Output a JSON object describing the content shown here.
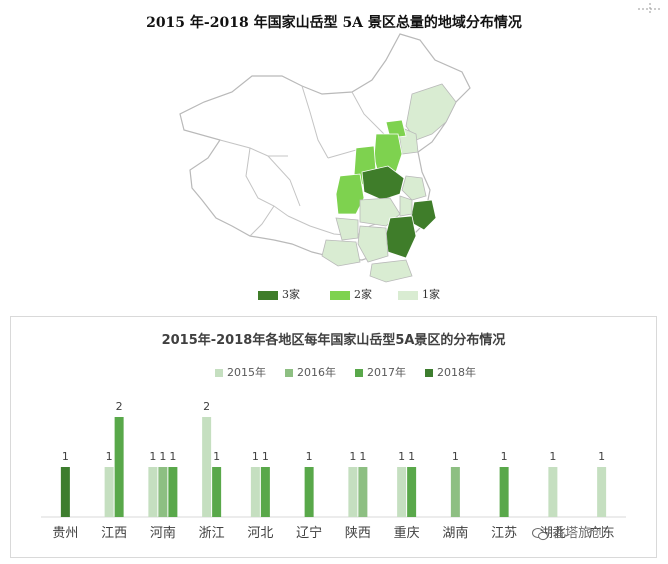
{
  "map_title": "2015 年-2018 年国家山岳型 5A 景区总量的地域分布情况",
  "map_legend": [
    {
      "label": "3家",
      "color": "#3f7d2a"
    },
    {
      "label": "2家",
      "color": "#7ed24f"
    },
    {
      "label": "1家",
      "color": "#d9ecd2"
    }
  ],
  "watermark": "香塔旅创",
  "chart_data": {
    "type": "bar",
    "title": "2015年-2018年各地区每年国家山岳型5A景区的分布情况",
    "categories": [
      "贵州",
      "江西",
      "河南",
      "浙江",
      "河北",
      "辽宁",
      "陕西",
      "重庆",
      "湖南",
      "江苏",
      "湖北",
      "广东"
    ],
    "series": [
      {
        "name": "2015年",
        "color": "#c5dfc0",
        "values": [
          0,
          1,
          1,
          2,
          1,
          0,
          1,
          1,
          0,
          0,
          1,
          1
        ]
      },
      {
        "name": "2016年",
        "color": "#8dbf82",
        "values": [
          0,
          0,
          1,
          0,
          0,
          0,
          1,
          0,
          1,
          0,
          0,
          0
        ]
      },
      {
        "name": "2017年",
        "color": "#59a84a",
        "values": [
          0,
          2,
          1,
          1,
          1,
          1,
          0,
          1,
          0,
          1,
          0,
          0
        ]
      },
      {
        "name": "2018年",
        "color": "#3d7d2e",
        "values": [
          1,
          0,
          0,
          0,
          0,
          0,
          0,
          0,
          0,
          0,
          0,
          0
        ]
      }
    ],
    "data_labels": true,
    "legend": "top",
    "grid": false,
    "ylim": [
      0,
      2
    ]
  }
}
